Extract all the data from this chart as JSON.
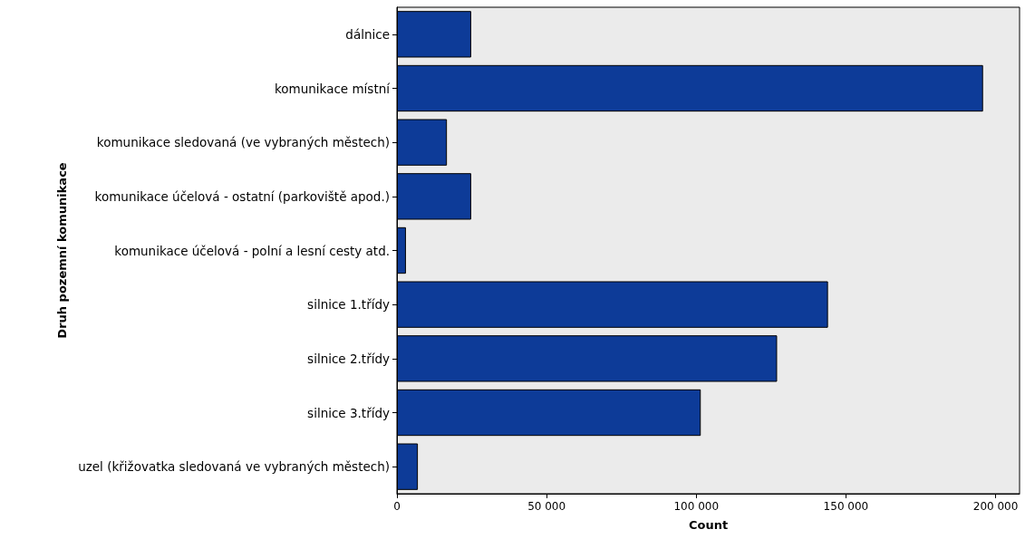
{
  "chart_data": {
    "type": "bar",
    "orientation": "horizontal",
    "xlabel": "Count",
    "ylabel": "Druh pozemní komunikace",
    "categories": [
      "dálnice",
      "komunikace místní",
      "komunikace sledovaná (ve vybraných městech)",
      "komunikace účelová - ostatní (parkoviště apod.)",
      "komunikace účelová - polní a lesní cesty atd.",
      "silnice 1.třídy",
      "silnice 2.třídy",
      "silnice 3.třídy",
      "uzel (křižovatka sledovaná ve vybraných městech)"
    ],
    "values": [
      24800,
      195800,
      16700,
      24800,
      3000,
      144000,
      127000,
      101500,
      7000
    ],
    "color": "#0d3b98",
    "xlim": [
      0,
      208000
    ],
    "xticks": [
      0,
      {
        "value": 50000,
        "label": "50 000"
      },
      {
        "value": 100000,
        "label": "100 000"
      },
      {
        "value": 150000,
        "label": "150 000"
      },
      {
        "value": 200000,
        "label": "200 000"
      }
    ],
    "grid": false
  }
}
